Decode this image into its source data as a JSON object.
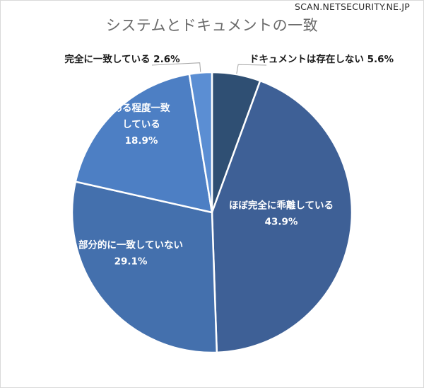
{
  "watermark": "SCAN.NETSECURITY.NE.JP",
  "chart_data": {
    "type": "pie",
    "title": "システムとドキュメントの一致",
    "slices": [
      {
        "label": "ドキュメントは存在しない",
        "value": 5.6,
        "display": "5.6%",
        "color": "#2f4f73"
      },
      {
        "label": "ほぼ完全に乖離している",
        "value": 43.9,
        "display": "43.9%",
        "color": "#3e6096"
      },
      {
        "label": "部分的に一致していない",
        "value": 29.1,
        "display": "29.1%",
        "color": "#4470ad"
      },
      {
        "label": "ある程度一致している",
        "value": 18.9,
        "display": "18.9%",
        "color": "#4d7fc4"
      },
      {
        "label": "完全に一致している",
        "value": 2.6,
        "display": "2.6%",
        "color": "#5b8ed3"
      }
    ]
  }
}
